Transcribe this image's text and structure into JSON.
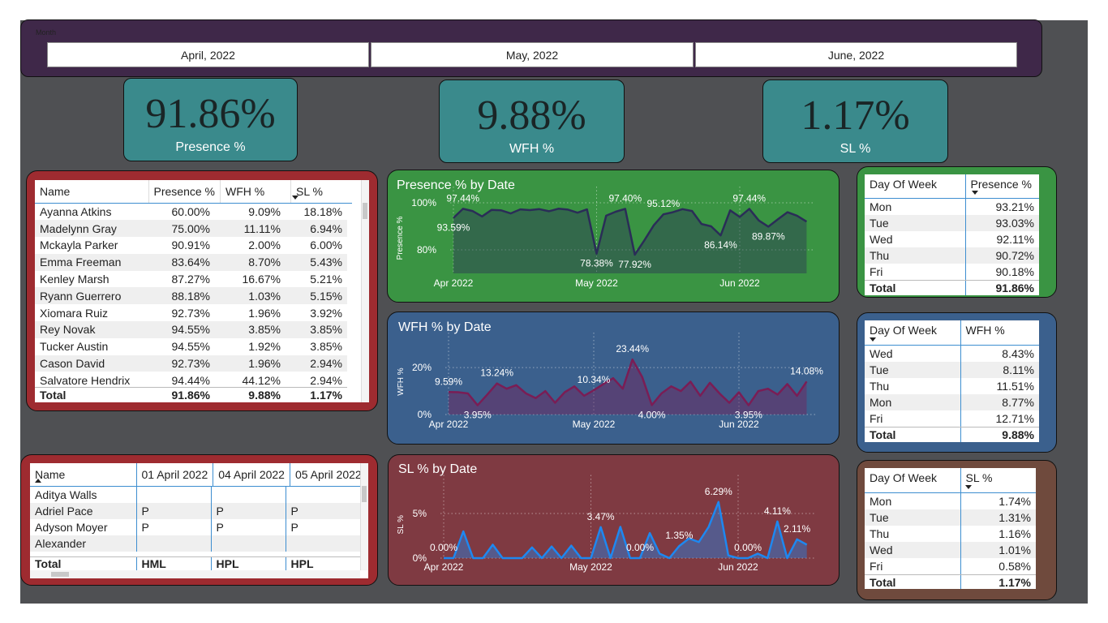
{
  "slicer": {
    "title": "Month",
    "options": [
      "April, 2022",
      "May, 2022",
      "June, 2022"
    ]
  },
  "cards": [
    {
      "value": "91.86%",
      "label": "Presence %"
    },
    {
      "value": "9.88%",
      "label": "WFH %"
    },
    {
      "value": "1.17%",
      "label": "SL %"
    }
  ],
  "tables": [
    {
      "columns": [
        "Name",
        "Presence %",
        "WFH %",
        "SL %"
      ],
      "rows": [
        [
          "Ayanna Atkins",
          "60.00%",
          "9.09%",
          "18.18%"
        ],
        [
          "Madelynn Gray",
          "75.00%",
          "11.11%",
          "6.94%"
        ],
        [
          "Mckayla Parker",
          "90.91%",
          "2.00%",
          "6.00%"
        ],
        [
          "Emma Freeman",
          "83.64%",
          "8.70%",
          "5.43%"
        ],
        [
          "Kenley Marsh",
          "87.27%",
          "16.67%",
          "5.21%"
        ],
        [
          "Ryann Guerrero",
          "88.18%",
          "1.03%",
          "5.15%"
        ],
        [
          "Xiomara Ruiz",
          "92.73%",
          "1.96%",
          "3.92%"
        ],
        [
          "Rey Novak",
          "94.55%",
          "3.85%",
          "3.85%"
        ],
        [
          "Tucker Austin",
          "94.55%",
          "1.92%",
          "3.85%"
        ],
        [
          "Cason David",
          "92.73%",
          "1.96%",
          "2.94%"
        ],
        [
          "Salvatore Hendrix",
          "94.44%",
          "44.12%",
          "2.94%"
        ]
      ],
      "total": [
        "Total",
        "91.86%",
        "9.88%",
        "1.17%"
      ]
    },
    {
      "columns": [
        "Name",
        "01 April 2022",
        "04 April 2022",
        "05 April 2022"
      ],
      "rows": [
        [
          "Aditya Walls",
          null,
          null,
          null
        ],
        [
          "Adriel Pace",
          "P",
          "P",
          "P"
        ],
        [
          "Adyson Moyer",
          "P",
          "P",
          "P"
        ],
        [
          "Alexander",
          null,
          null,
          null
        ]
      ],
      "total": [
        "Total",
        "HML",
        "HPL",
        "HPL"
      ]
    },
    {
      "columns": [
        "Day Of Week",
        "Presence %"
      ],
      "rows": [
        [
          "Mon",
          "93.21%"
        ],
        [
          "Tue",
          "93.03%"
        ],
        [
          "Wed",
          "92.11%"
        ],
        [
          "Thu",
          "90.72%"
        ],
        [
          "Fri",
          "90.18%"
        ]
      ],
      "total": [
        "Total",
        "91.86%"
      ]
    },
    {
      "columns": [
        "Day Of Week",
        "WFH %"
      ],
      "rows": [
        [
          "Wed",
          "8.43%"
        ],
        [
          "Tue",
          "8.11%"
        ],
        [
          "Thu",
          "11.51%"
        ],
        [
          "Mon",
          "8.77%"
        ],
        [
          "Fri",
          "12.71%"
        ]
      ],
      "total": [
        "Total",
        "9.88%"
      ]
    },
    {
      "columns": [
        "Day Of Week",
        "SL %"
      ],
      "rows": [
        [
          "Mon",
          "1.74%"
        ],
        [
          "Tue",
          "1.31%"
        ],
        [
          "Thu",
          "1.16%"
        ],
        [
          "Wed",
          "1.01%"
        ],
        [
          "Fri",
          "0.58%"
        ]
      ],
      "total": [
        "Total",
        "1.17%"
      ]
    }
  ],
  "chart_data": [
    {
      "type": "line",
      "title": "Presence % by Date",
      "y_label": "Presence %",
      "color": "#2a2d57",
      "grid": true,
      "categories": [
        "Apr 2022",
        null,
        null,
        null,
        null,
        null,
        null,
        null,
        null,
        null,
        null,
        null,
        null,
        null,
        null,
        "May 2022",
        null,
        null,
        null,
        null,
        null,
        null,
        null,
        null,
        null,
        null,
        null,
        null,
        null,
        null,
        "Jun 2022",
        null,
        null,
        null,
        null,
        null,
        null,
        null
      ],
      "values": [
        93.59,
        97.44,
        96.5,
        94.2,
        97.0,
        96.8,
        95.5,
        97.2,
        96.9,
        97.3,
        96.4,
        97.5,
        97.1,
        95.8,
        97.2,
        78.38,
        94.5,
        96.2,
        97.4,
        77.92,
        84.0,
        90.5,
        95.12,
        96.0,
        97.3,
        96.5,
        91.0,
        90.0,
        86.14,
        96.8,
        94.0,
        97.44,
        92.5,
        89.87,
        93.0,
        96.0,
        94.5,
        92.0
      ],
      "value_labels": [
        "93.59%",
        "97.44%",
        null,
        null,
        null,
        null,
        null,
        null,
        null,
        null,
        null,
        null,
        null,
        null,
        null,
        "78.38%",
        null,
        null,
        "97.40%",
        "77.92%",
        null,
        null,
        "95.12%",
        null,
        null,
        null,
        null,
        null,
        "86.14%",
        null,
        null,
        "97.44%",
        null,
        "89.87%",
        null,
        null,
        null,
        null
      ],
      "ylim": [
        70,
        100
      ],
      "yticks": [
        {
          "value": 80,
          "label": "80%"
        },
        {
          "value": 100,
          "label": "100%"
        }
      ]
    },
    {
      "type": "line",
      "title": "WFH % by Date",
      "y_label": "WFH %",
      "color": "#7a1d55",
      "grid": true,
      "categories": [
        "Apr 2022",
        null,
        null,
        null,
        null,
        null,
        null,
        null,
        null,
        null,
        null,
        null,
        null,
        null,
        null,
        "May 2022",
        null,
        null,
        null,
        null,
        null,
        null,
        null,
        null,
        null,
        null,
        null,
        null,
        null,
        null,
        "Jun 2022",
        null,
        null,
        null,
        null,
        null,
        null,
        null
      ],
      "values": [
        9.59,
        9.5,
        9.0,
        3.95,
        8.5,
        13.24,
        11.0,
        12.5,
        9.0,
        7.0,
        10.0,
        5.0,
        9.5,
        12.0,
        8.0,
        10.34,
        13.0,
        15.5,
        11.0,
        23.44,
        16.0,
        4.0,
        9.0,
        12.0,
        10.0,
        14.0,
        8.0,
        13.5,
        9.0,
        5.0,
        9.5,
        3.95,
        10.0,
        11.0,
        8.5,
        13.0,
        8.0,
        14.08
      ],
      "value_labels": [
        "9.59%",
        null,
        null,
        "3.95%",
        null,
        "13.24%",
        null,
        null,
        null,
        null,
        null,
        null,
        null,
        null,
        null,
        "10.34%",
        null,
        null,
        null,
        "23.44%",
        null,
        "4.00%",
        null,
        null,
        null,
        null,
        null,
        null,
        null,
        null,
        null,
        "3.95%",
        null,
        null,
        null,
        null,
        null,
        "14.08%"
      ],
      "ylim": [
        0,
        28
      ],
      "yticks": [
        {
          "value": 0,
          "label": "0%"
        },
        {
          "value": 20,
          "label": "20%"
        }
      ]
    },
    {
      "type": "line",
      "title": "SL % by Date",
      "y_label": "SL %",
      "color": "#1e88f0",
      "grid": true,
      "categories": [
        "Apr 2022",
        null,
        null,
        null,
        null,
        null,
        null,
        null,
        null,
        null,
        null,
        null,
        null,
        null,
        null,
        "May 2022",
        null,
        null,
        null,
        null,
        null,
        null,
        null,
        null,
        null,
        null,
        null,
        null,
        null,
        null,
        "Jun 2022",
        null,
        null,
        null,
        null,
        null,
        null,
        null
      ],
      "values": [
        0.0,
        0.0,
        3.0,
        0.0,
        0.0,
        1.5,
        0.0,
        0.0,
        0.0,
        1.2,
        0.0,
        1.3,
        0.0,
        1.4,
        0.0,
        0.0,
        3.47,
        0.0,
        3.5,
        0.0,
        0.0,
        2.8,
        0.5,
        0.0,
        1.35,
        2.2,
        1.8,
        3.5,
        6.29,
        0.3,
        0.0,
        0.0,
        0.5,
        0.0,
        4.11,
        0.0,
        2.11,
        1.5
      ],
      "value_labels": [
        "0.00%",
        null,
        null,
        null,
        null,
        null,
        null,
        null,
        null,
        null,
        null,
        null,
        null,
        null,
        null,
        null,
        "3.47%",
        null,
        null,
        null,
        "0.00%",
        null,
        null,
        null,
        "1.35%",
        null,
        null,
        null,
        "6.29%",
        null,
        null,
        "0.00%",
        null,
        null,
        "4.11%",
        null,
        "2.11%",
        null
      ],
      "ylim": [
        0,
        7.5
      ],
      "yticks": [
        {
          "value": 0,
          "label": "0%"
        },
        {
          "value": 5,
          "label": "5%"
        }
      ]
    }
  ]
}
